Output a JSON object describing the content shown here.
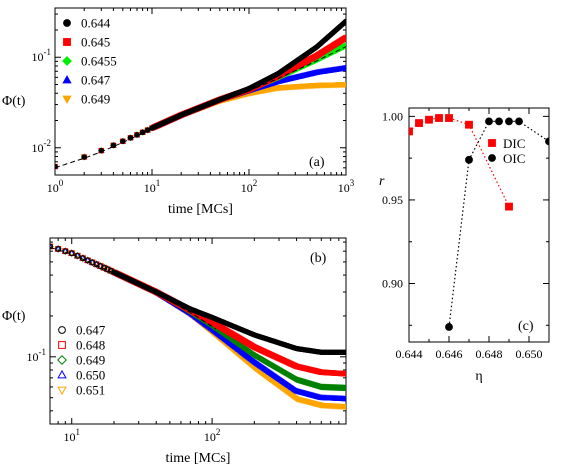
{
  "chart_data": [
    {
      "panel": "(a)",
      "type": "scatter",
      "xscale": "log",
      "yscale": "log",
      "xlim": [
        1,
        1000
      ],
      "ylim": [
        0.005,
        0.35
      ],
      "xlabel": "time [MCs]",
      "ylabel": "Φ(t)",
      "xticks": [
        {
          "v": 1,
          "base": "10",
          "exp": "0"
        },
        {
          "v": 10,
          "base": "10",
          "exp": "1"
        },
        {
          "v": 100,
          "base": "10",
          "exp": "2"
        },
        {
          "v": 1000,
          "base": "10",
          "exp": "3"
        }
      ],
      "yticks": [
        {
          "v": 0.01,
          "base": "10",
          "exp": "-2"
        },
        {
          "v": 0.1,
          "base": "10",
          "exp": "-1"
        }
      ],
      "legend_position": "top-left",
      "series": [
        {
          "name": "0.644",
          "marker": "circle",
          "color": "#000000",
          "curve": [
            [
              1,
              0.0062
            ],
            [
              2,
              0.0079
            ],
            [
              3,
              0.0093
            ],
            [
              5,
              0.0118
            ],
            [
              10,
              0.0165
            ],
            [
              20,
              0.023
            ],
            [
              50,
              0.034
            ],
            [
              100,
              0.045
            ],
            [
              200,
              0.066
            ],
            [
              500,
              0.13
            ],
            [
              1000,
              0.25
            ]
          ]
        },
        {
          "name": "0.645",
          "marker": "square",
          "color": "#ff0000",
          "curve": [
            [
              1,
              0.0062
            ],
            [
              2,
              0.0079
            ],
            [
              3,
              0.0093
            ],
            [
              5,
              0.0118
            ],
            [
              10,
              0.0165
            ],
            [
              20,
              0.023
            ],
            [
              50,
              0.034
            ],
            [
              100,
              0.044
            ],
            [
              200,
              0.062
            ],
            [
              500,
              0.104
            ],
            [
              1000,
              0.165
            ]
          ]
        },
        {
          "name": "0.6455",
          "marker": "diamond",
          "color": "#00ee00",
          "curve": [
            [
              1,
              0.0062
            ],
            [
              2,
              0.0079
            ],
            [
              3,
              0.0093
            ],
            [
              5,
              0.0118
            ],
            [
              10,
              0.0165
            ],
            [
              20,
              0.023
            ],
            [
              50,
              0.034
            ],
            [
              100,
              0.044
            ],
            [
              200,
              0.06
            ],
            [
              500,
              0.094
            ],
            [
              1000,
              0.135
            ]
          ]
        },
        {
          "name": "0.647",
          "marker": "triangle-up",
          "color": "#0000ff",
          "curve": [
            [
              1,
              0.0062
            ],
            [
              2,
              0.0079
            ],
            [
              3,
              0.0093
            ],
            [
              5,
              0.0118
            ],
            [
              10,
              0.0165
            ],
            [
              20,
              0.023
            ],
            [
              50,
              0.034
            ],
            [
              100,
              0.043
            ],
            [
              200,
              0.054
            ],
            [
              500,
              0.068
            ],
            [
              1000,
              0.076
            ]
          ]
        },
        {
          "name": "0.649",
          "marker": "triangle-down",
          "color": "#ffa500",
          "curve": [
            [
              1,
              0.0062
            ],
            [
              2,
              0.0079
            ],
            [
              3,
              0.0093
            ],
            [
              5,
              0.0118
            ],
            [
              10,
              0.0165
            ],
            [
              20,
              0.023
            ],
            [
              50,
              0.033
            ],
            [
              100,
              0.04
            ],
            [
              200,
              0.046
            ],
            [
              500,
              0.049
            ],
            [
              1000,
              0.05
            ]
          ]
        }
      ]
    },
    {
      "panel": "(b)",
      "type": "scatter",
      "xscale": "log",
      "yscale": "log",
      "xlim": [
        7,
        900
      ],
      "ylim": [
        0.032,
        0.75
      ],
      "xlabel": "time [MCs]",
      "ylabel": "Φ(t)",
      "xticks": [
        {
          "v": 10,
          "base": "10",
          "exp": "1"
        },
        {
          "v": 100,
          "base": "10",
          "exp": "2"
        }
      ],
      "yticks": [
        {
          "v": 0.1,
          "base": "10",
          "exp": "-1"
        }
      ],
      "legend_position": "bottom-left",
      "series": [
        {
          "name": "0.647",
          "marker": "circle-open",
          "color": "#000000",
          "curve": [
            [
              7,
              0.65
            ],
            [
              10,
              0.58
            ],
            [
              20,
              0.42
            ],
            [
              40,
              0.3
            ],
            [
              70,
              0.225
            ],
            [
              100,
              0.195
            ],
            [
              200,
              0.145
            ],
            [
              400,
              0.115
            ],
            [
              600,
              0.108
            ],
            [
              900,
              0.108
            ]
          ]
        },
        {
          "name": "0.648",
          "marker": "square-open",
          "color": "#ff0000",
          "curve": [
            [
              7,
              0.65
            ],
            [
              10,
              0.58
            ],
            [
              20,
              0.42
            ],
            [
              40,
              0.3
            ],
            [
              70,
              0.22
            ],
            [
              100,
              0.18
            ],
            [
              200,
              0.118
            ],
            [
              400,
              0.085
            ],
            [
              600,
              0.077
            ],
            [
              900,
              0.075
            ]
          ]
        },
        {
          "name": "0.649",
          "marker": "diamond-open",
          "color": "#008000",
          "curve": [
            [
              7,
              0.65
            ],
            [
              10,
              0.58
            ],
            [
              20,
              0.42
            ],
            [
              40,
              0.3
            ],
            [
              70,
              0.215
            ],
            [
              100,
              0.17
            ],
            [
              200,
              0.103
            ],
            [
              400,
              0.068
            ],
            [
              600,
              0.06
            ],
            [
              900,
              0.059
            ]
          ]
        },
        {
          "name": "0.650",
          "marker": "triangle-up-open",
          "color": "#0000ff",
          "curve": [
            [
              7,
              0.65
            ],
            [
              10,
              0.58
            ],
            [
              20,
              0.42
            ],
            [
              40,
              0.3
            ],
            [
              70,
              0.21
            ],
            [
              100,
              0.16
            ],
            [
              200,
              0.092
            ],
            [
              400,
              0.056
            ],
            [
              600,
              0.05
            ],
            [
              900,
              0.049
            ]
          ]
        },
        {
          "name": "0.651",
          "marker": "triangle-down-open",
          "color": "#ffa500",
          "curve": [
            [
              7,
              0.65
            ],
            [
              10,
              0.58
            ],
            [
              20,
              0.42
            ],
            [
              40,
              0.3
            ],
            [
              70,
              0.205
            ],
            [
              100,
              0.152
            ],
            [
              200,
              0.083
            ],
            [
              400,
              0.049
            ],
            [
              600,
              0.044
            ],
            [
              900,
              0.043
            ]
          ]
        }
      ]
    },
    {
      "panel": "(c)",
      "type": "scatter",
      "xlim": [
        0.644,
        0.651
      ],
      "ylim": [
        0.865,
        1.005
      ],
      "xlabel": "η",
      "ylabel": "r",
      "xticks": [
        {
          "v": 0.644,
          "label": "0.644"
        },
        {
          "v": 0.646,
          "label": "0.646"
        },
        {
          "v": 0.648,
          "label": "0.648"
        },
        {
          "v": 0.65,
          "label": "0.650"
        }
      ],
      "yticks": [
        {
          "v": 0.9,
          "label": "0.90"
        },
        {
          "v": 0.95,
          "label": "0.95"
        },
        {
          "v": 1.0,
          "label": "1.00"
        }
      ],
      "legend_position": "right",
      "series": [
        {
          "name": "DIC",
          "marker": "square",
          "color": "#ff0000",
          "line": "dotted",
          "x": [
            0.644,
            0.6445,
            0.645,
            0.6455,
            0.646,
            0.647,
            0.649
          ],
          "y": [
            0.991,
            0.996,
            0.998,
            0.999,
            0.999,
            0.995,
            0.946
          ]
        },
        {
          "name": "OIC",
          "marker": "circle",
          "color": "#000000",
          "line": "dotted",
          "x": [
            0.646,
            0.647,
            0.648,
            0.6485,
            0.649,
            0.6495,
            0.651
          ],
          "y": [
            0.874,
            0.974,
            0.997,
            0.997,
            0.997,
            0.997,
            0.985
          ]
        }
      ]
    }
  ]
}
